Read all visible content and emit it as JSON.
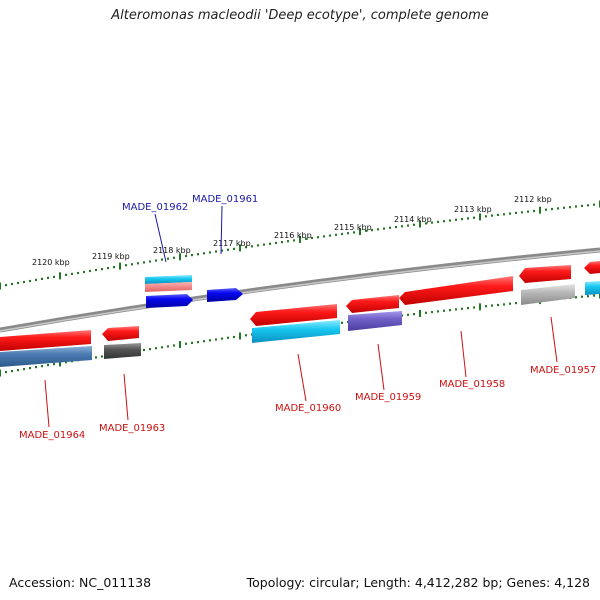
{
  "title": "Alteromonas macleodii 'Deep ecotype', complete genome",
  "accession": "Accession: NC_011138",
  "topology": "Topology: circular; Length: 4,412,282 bp; Genes: 4,128",
  "scale_labels": [
    "2120 kbp",
    "2119 kbp",
    "2118 kbp",
    "2117 kbp",
    "2116 kbp",
    "2115 kbp",
    "2114 kbp",
    "2113 kbp",
    "2112 kbp"
  ],
  "gene_labels": {
    "MADE_01962": "MADE_01962",
    "MADE_01961": "MADE_01961",
    "MADE_01964": "MADE_01964",
    "MADE_01963": "MADE_01963",
    "MADE_01960": "MADE_01960",
    "MADE_01959": "MADE_01959",
    "MADE_01958": "MADE_01958",
    "MADE_01957": "MADE_01957"
  },
  "colors": {
    "plus_strand_label": "#1a1aa8",
    "minus_strand_label": "#cc1111",
    "backbone": "#777777",
    "tick": "#1f7a1f",
    "red_gene": "#e81010",
    "blue_gene": "#0808e0",
    "cyan_gene": "#18c8f0",
    "steel_gene": "#4a7ab0",
    "purple_gene": "#7060c8",
    "gray_gene": "#b0b0b0",
    "dark_gene": "#555555"
  }
}
